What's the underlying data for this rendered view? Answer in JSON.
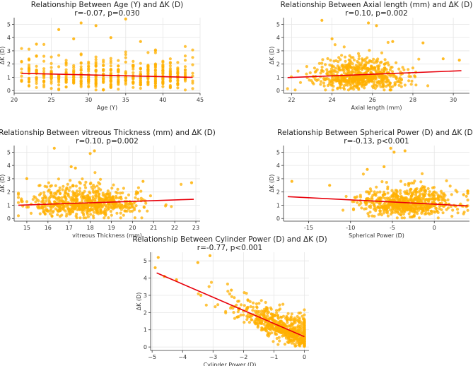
{
  "figure": {
    "point_color": "#FFB000",
    "line_color": "#E8000B"
  },
  "chart_data": [
    {
      "type": "scatter",
      "title": "Relationship Between Age (Y) and ΔK (D)",
      "stats": "r=-0.07, p=0.030",
      "xlabel": "Age (Y)",
      "ylabel": "ΔK (D)",
      "xlim": [
        20,
        45
      ],
      "ylim": [
        -0.2,
        5.5
      ],
      "xticks": [
        20,
        25,
        30,
        35,
        40,
        45
      ],
      "yticks": [
        0,
        1,
        2,
        3,
        4,
        5
      ],
      "grid": true,
      "x_is_integer": true,
      "x_center": 31,
      "x_spread": 5.5,
      "x_min": 21,
      "x_max": 44,
      "y_base": 1.1,
      "y_spread": 0.55,
      "n_points": 520,
      "fit_line": {
        "x": [
          21,
          44
        ],
        "y": [
          1.3,
          1.0
        ]
      },
      "outliers": [
        [
          29,
          5.1
        ],
        [
          31,
          4.9
        ],
        [
          35,
          5.4
        ],
        [
          26,
          4.6
        ],
        [
          28,
          3.9
        ],
        [
          33,
          4.0
        ],
        [
          37,
          3.7
        ],
        [
          23,
          3.5
        ]
      ]
    },
    {
      "type": "scatter",
      "title": "Relationship Between Axial length (mm) and ΔK (D)",
      "stats": "r=0.10, p=0.002",
      "xlabel": "Axial length (mm)",
      "ylabel": "ΔK (D)",
      "xlim": [
        21.6,
        30.8
      ],
      "ylim": [
        -0.2,
        5.5
      ],
      "xticks": [
        22,
        24,
        26,
        28,
        30
      ],
      "yticks": [
        0,
        1,
        2,
        3,
        4,
        5
      ],
      "grid": true,
      "x_is_integer": false,
      "x_center": 25.4,
      "x_spread": 1.1,
      "x_min": 21.8,
      "x_max": 30.4,
      "y_base": 1.1,
      "y_spread": 0.55,
      "n_points": 650,
      "fit_line": {
        "x": [
          21.8,
          30.4
        ],
        "y": [
          0.98,
          1.5
        ]
      },
      "outliers": [
        [
          23.5,
          5.3
        ],
        [
          25.8,
          5.1
        ],
        [
          26.2,
          4.9
        ],
        [
          24.0,
          3.9
        ],
        [
          27.0,
          3.7
        ],
        [
          28.5,
          3.6
        ],
        [
          29.5,
          2.4
        ],
        [
          30.3,
          2.3
        ]
      ]
    },
    {
      "type": "scatter",
      "title": "Relationship Between vitreous Thickness (mm) and ΔK (D)",
      "stats": "r=0.10, p=0.002",
      "xlabel": "vitreous Thickness (mm)",
      "ylabel": "ΔK (D)",
      "xlim": [
        14.4,
        23.2
      ],
      "ylim": [
        -0.2,
        5.5
      ],
      "xticks": [
        15,
        16,
        17,
        18,
        19,
        20,
        21,
        22,
        23
      ],
      "yticks": [
        0,
        1,
        2,
        3,
        4,
        5
      ],
      "grid": true,
      "x_is_integer": false,
      "x_center": 17.8,
      "x_spread": 1.3,
      "x_min": 14.6,
      "x_max": 22.9,
      "y_base": 1.1,
      "y_spread": 0.55,
      "n_points": 650,
      "fit_line": {
        "x": [
          14.6,
          22.9
        ],
        "y": [
          1.0,
          1.45
        ]
      },
      "outliers": [
        [
          16.3,
          5.3
        ],
        [
          18.2,
          5.1
        ],
        [
          18.0,
          4.9
        ],
        [
          17.1,
          3.9
        ],
        [
          17.3,
          3.8
        ],
        [
          20.5,
          2.8
        ],
        [
          22.8,
          2.7
        ],
        [
          15.0,
          3.0
        ]
      ]
    },
    {
      "type": "scatter",
      "title": "Relationship Between Spherical Power (D) and ΔK (D)",
      "stats": "r=-0.13, p<0.001",
      "xlabel": "Spherical Power (D)",
      "ylabel": "ΔK (D)",
      "xlim": [
        -18,
        4.2
      ],
      "ylim": [
        -0.2,
        5.5
      ],
      "xticks": [
        -15,
        -10,
        -5,
        0
      ],
      "yticks": [
        0,
        1,
        2,
        3,
        4,
        5
      ],
      "grid": true,
      "x_is_integer": false,
      "x_center": -3.0,
      "x_spread": 2.8,
      "x_min": -17.5,
      "x_max": 4.0,
      "y_base": 1.1,
      "y_spread": 0.55,
      "n_points": 650,
      "fit_line": {
        "x": [
          -17.5,
          4.0
        ],
        "y": [
          1.65,
          0.95
        ]
      },
      "outliers": [
        [
          -5.2,
          5.3
        ],
        [
          -4.8,
          5.0
        ],
        [
          -3.5,
          5.1
        ],
        [
          -17.0,
          2.8
        ],
        [
          -12.5,
          2.5
        ],
        [
          3.5,
          1.8
        ],
        [
          -8.0,
          3.7
        ],
        [
          -6.0,
          3.9
        ]
      ]
    },
    {
      "type": "scatter",
      "title": "Relationship Between Cylinder Power (D) and ΔK (D)",
      "stats": "r=-0.77, p<0.001",
      "xlabel": "Cylinder Power (D)",
      "ylabel": "ΔK (D)",
      "xlim": [
        -5.05,
        0.15
      ],
      "ylim": [
        -0.2,
        5.5
      ],
      "xticks": [
        -5,
        -4,
        -3,
        -2,
        -1,
        0
      ],
      "xtick_labels": [
        "−5",
        "−4",
        "−3",
        "−2",
        "−1",
        "0"
      ],
      "yticks": [
        0,
        1,
        2,
        3,
        4,
        5
      ],
      "grid": true,
      "x_is_integer": false,
      "x_center": -0.5,
      "x_spread": 0.9,
      "x_min": -4.9,
      "x_max": 0,
      "y_base": 0.55,
      "y_slope": -0.75,
      "y_spread": 0.4,
      "n_points": 750,
      "fit_line": {
        "x": [
          -4.85,
          0
        ],
        "y": [
          4.3,
          0.6
        ]
      },
      "outliers": [
        [
          -4.9,
          4.6
        ],
        [
          -4.8,
          5.2
        ],
        [
          -4.2,
          3.9
        ],
        [
          -3.1,
          5.3
        ],
        [
          -3.5,
          4.9
        ],
        [
          -4.6,
          4.1
        ],
        [
          -3.4,
          3.0
        ],
        [
          -2.4,
          3.3
        ]
      ]
    }
  ]
}
